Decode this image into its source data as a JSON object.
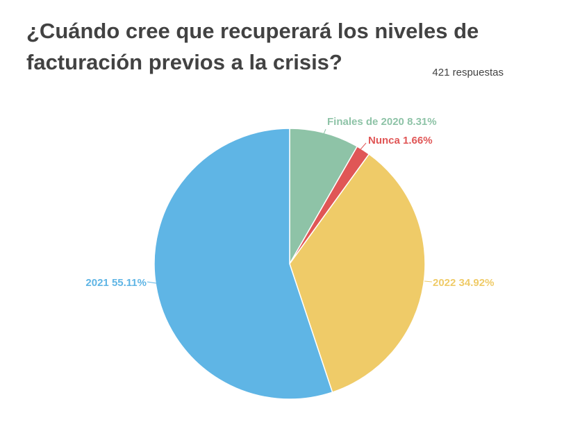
{
  "title": "¿Cuándo cree que recuperará los niveles de facturación previos a la crisis?",
  "responses": "421 respuestas",
  "chart_data": {
    "type": "pie",
    "title": "¿Cuándo cree que recuperará los niveles de facturación previos a la crisis?",
    "slices": [
      {
        "label": "Finales de 2020",
        "value": 8.31,
        "text": "Finales de 2020 8.31%",
        "color": "#8ec3a7"
      },
      {
        "label": "Nunca",
        "value": 1.66,
        "text": "Nunca 1.66%",
        "color": "#e05656"
      },
      {
        "label": "2022",
        "value": 34.92,
        "text": "2022 34.92%",
        "color": "#efcb68"
      },
      {
        "label": "2021",
        "value": 55.11,
        "text": "2021 55.11%",
        "color": "#5fb5e5"
      }
    ]
  }
}
